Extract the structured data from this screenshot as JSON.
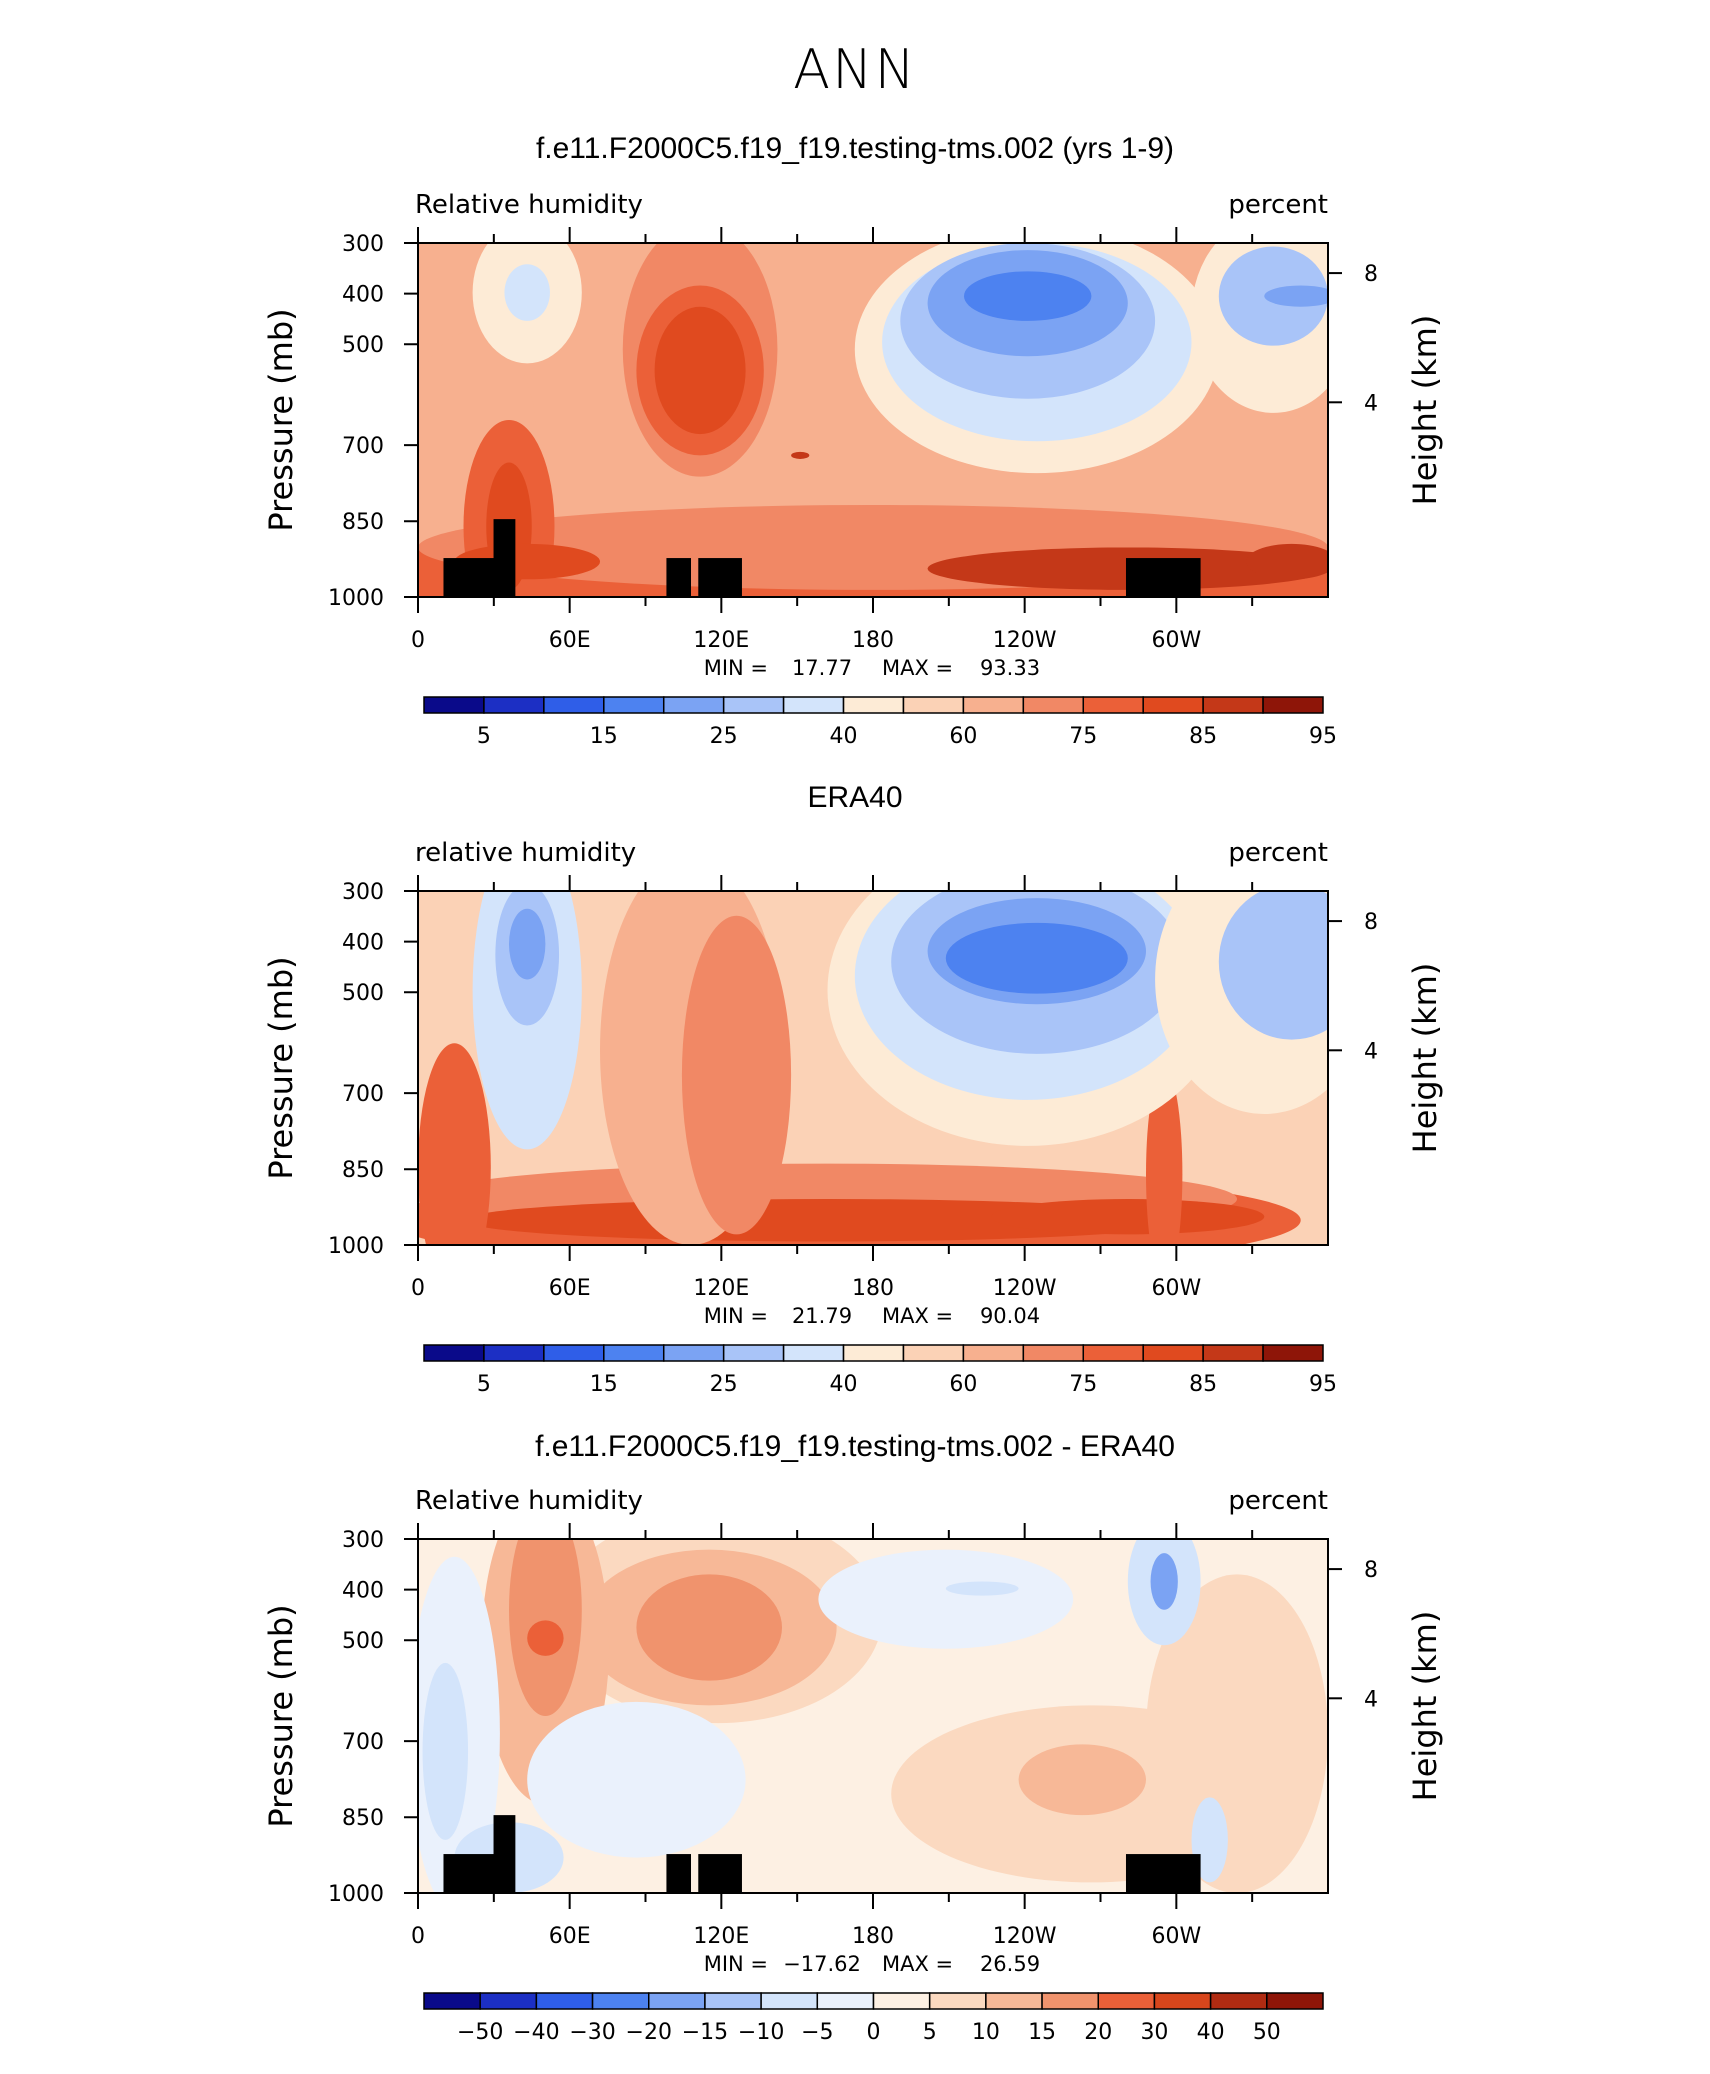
{
  "figure": {
    "title": "ANN"
  },
  "chart_data": [
    {
      "type": "heatmap",
      "title": "f.e11.F2000C5.f19_f19.testing-tms.002 (yrs 1-9)",
      "variable_label": "Relative humidity",
      "units_label": "percent",
      "ylabel": "Pressure (mb)",
      "ylabel_right": "Height (km)",
      "y_ticks": [
        "300",
        "400",
        "500",
        "700",
        "850",
        "1000"
      ],
      "y_right_ticks": [
        "8",
        "4"
      ],
      "x_ticks": [
        "0",
        "60E",
        "120E",
        "180",
        "120W",
        "60W"
      ],
      "stats": {
        "min_label": "MIN =",
        "min": "17.77",
        "max_label": "MAX =",
        "max": "93.33"
      },
      "colorbar_labels": [
        "5",
        "15",
        "25",
        "40",
        "60",
        "75",
        "85",
        "95"
      ],
      "colors": [
        "#0a0a8a",
        "#1c2fc4",
        "#2f5ee8",
        "#4d82f0",
        "#7ba3f3",
        "#a9c4f8",
        "#d3e4fb",
        "#fdebd6",
        "#fbd2b6",
        "#f7b08f",
        "#f18865",
        "#eb6038",
        "#e04a1f",
        "#c43818",
        "#8e1508"
      ],
      "terrain": true
    },
    {
      "type": "heatmap",
      "title": "ERA40",
      "variable_label": "relative humidity",
      "units_label": "percent",
      "ylabel": "Pressure (mb)",
      "ylabel_right": "Height (km)",
      "y_ticks": [
        "300",
        "400",
        "500",
        "700",
        "850",
        "1000"
      ],
      "y_right_ticks": [
        "8",
        "4"
      ],
      "x_ticks": [
        "0",
        "60E",
        "120E",
        "180",
        "120W",
        "60W"
      ],
      "stats": {
        "min_label": "MIN =",
        "min": "21.79",
        "max_label": "MAX =",
        "max": "90.04"
      },
      "colorbar_labels": [
        "5",
        "15",
        "25",
        "40",
        "60",
        "75",
        "85",
        "95"
      ],
      "colors": [
        "#0a0a8a",
        "#1c2fc4",
        "#2f5ee8",
        "#4d82f0",
        "#7ba3f3",
        "#a9c4f8",
        "#d3e4fb",
        "#fdebd6",
        "#fbd2b6",
        "#f7b08f",
        "#f18865",
        "#eb6038",
        "#e04a1f",
        "#c43818",
        "#8e1508"
      ],
      "terrain": false
    },
    {
      "type": "heatmap",
      "title": "f.e11.F2000C5.f19_f19.testing-tms.002 - ERA40",
      "variable_label": "Relative humidity",
      "units_label": "percent",
      "ylabel": "Pressure (mb)",
      "ylabel_right": "Height (km)",
      "y_ticks": [
        "300",
        "400",
        "500",
        "700",
        "850",
        "1000"
      ],
      "y_right_ticks": [
        "8",
        "4"
      ],
      "x_ticks": [
        "0",
        "60E",
        "120E",
        "180",
        "120W",
        "60W"
      ],
      "stats": {
        "min_label": "MIN =",
        "min": "−17.62",
        "max_label": "MAX =",
        "max": "26.59"
      },
      "colorbar_labels": [
        "−50",
        "−40",
        "−30",
        "−20",
        "−15",
        "−10",
        "−5",
        "0",
        "5",
        "10",
        "15",
        "20",
        "30",
        "40",
        "50"
      ],
      "colors": [
        "#0a0a8a",
        "#1c2fc4",
        "#2f5ee8",
        "#4d82f0",
        "#7ba3f3",
        "#a9c4f8",
        "#d3e4fb",
        "#eaf1fc",
        "#fdf0e3",
        "#fbd9c0",
        "#f7b897",
        "#f0936d",
        "#eb6038",
        "#d8461c",
        "#b02b12",
        "#8e1508"
      ],
      "terrain": true
    }
  ]
}
